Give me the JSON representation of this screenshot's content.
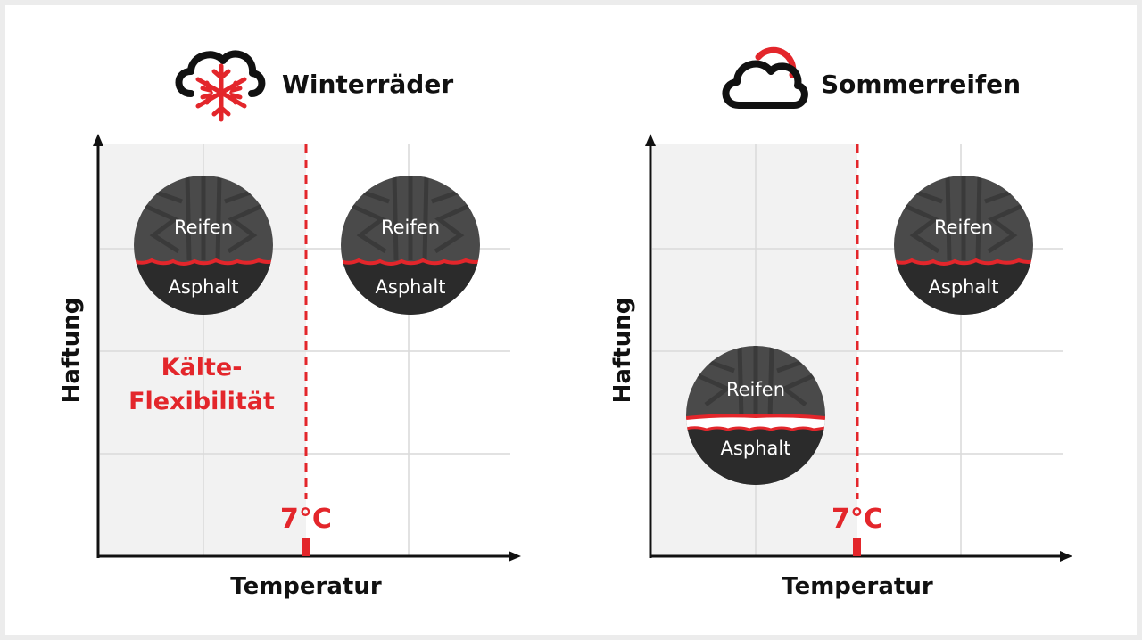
{
  "colors": {
    "accent": "#e3262b",
    "ink": "#111111",
    "tire": "#4a4a4a",
    "tire_dark": "#2b2b2b",
    "panel": "#f2f2f2",
    "grid": "#d9d9d9"
  },
  "icons": [
    "snow-cloud-icon",
    "sun-cloud-icon"
  ],
  "winter": {
    "title": "Winterräder",
    "y_label": "Haftung",
    "x_label": "Temperatur",
    "threshold_label": "7°C",
    "note_line1": "Kälte-",
    "note_line2": "Flexibilität",
    "tire_cold": {
      "top": "Reifen",
      "bottom": "Asphalt"
    },
    "tire_warm": {
      "top": "Reifen",
      "bottom": "Asphalt"
    }
  },
  "summer": {
    "title": "Sommerreifen",
    "y_label": "Haftung",
    "x_label": "Temperatur",
    "threshold_label": "7°C",
    "tire_cold": {
      "top": "Reifen",
      "bottom": "Asphalt"
    },
    "tire_warm": {
      "top": "Reifen",
      "bottom": "Asphalt"
    }
  }
}
